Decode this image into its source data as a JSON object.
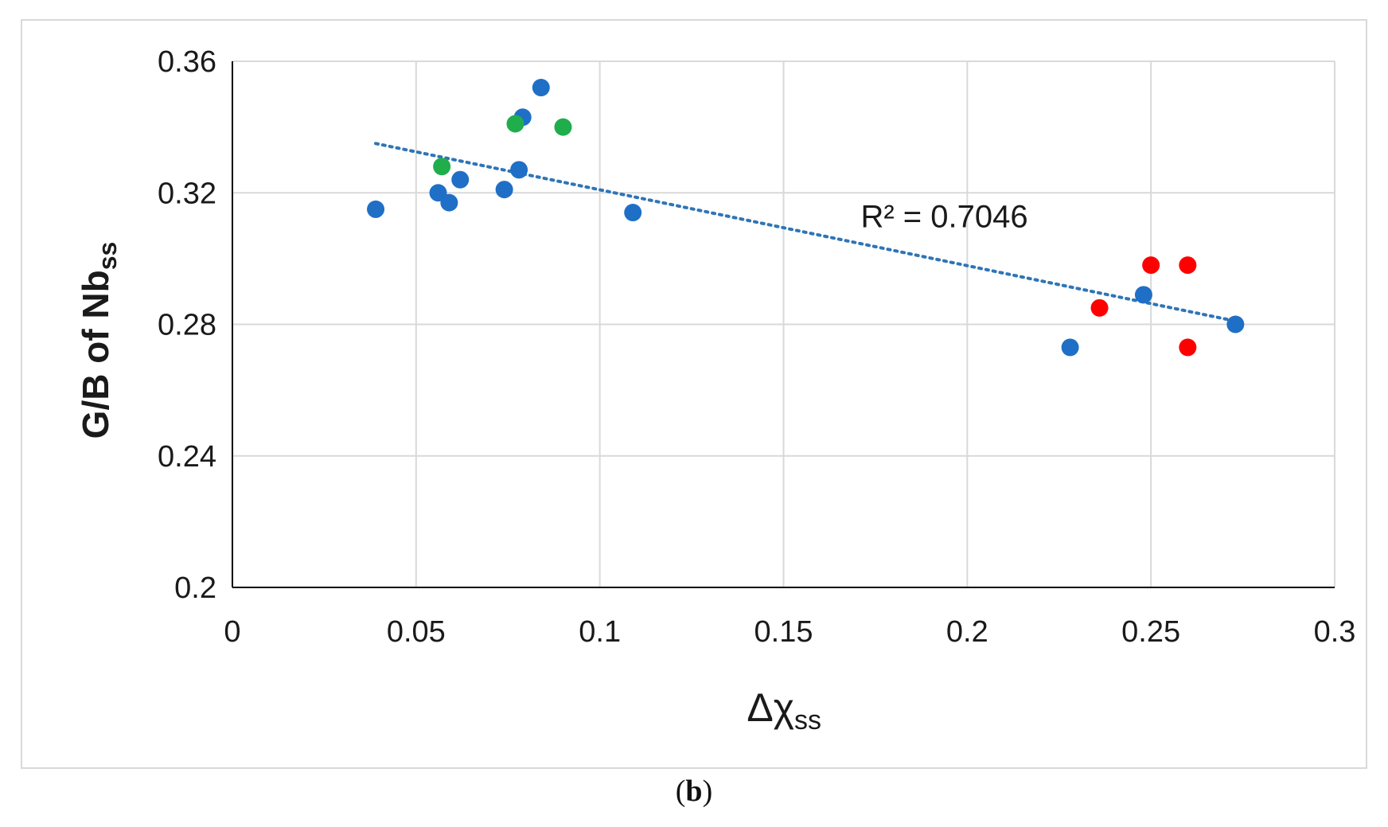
{
  "chart_data": {
    "type": "scatter",
    "title": "",
    "xlabel": "Δχ",
    "xlabel_sub": "ss",
    "ylabel": "G/B of Nb",
    "ylabel_sub": "ss",
    "xlim": [
      0,
      0.3
    ],
    "ylim": [
      0.2,
      0.36
    ],
    "x_ticks": [
      0,
      0.05,
      0.1,
      0.15,
      0.2,
      0.25,
      0.3
    ],
    "x_tick_labels": [
      "0",
      "0.05",
      "0.1",
      "0.15",
      "0.2",
      "0.25",
      "0.3"
    ],
    "y_ticks": [
      0.2,
      0.24,
      0.28,
      0.32,
      0.36
    ],
    "y_tick_labels": [
      "0.2",
      "0.24",
      "0.28",
      "0.32",
      "0.36"
    ],
    "grid": true,
    "series": [
      {
        "name": "blue",
        "color": "#1f6fc6",
        "points": [
          {
            "x": 0.039,
            "y": 0.315
          },
          {
            "x": 0.056,
            "y": 0.32
          },
          {
            "x": 0.059,
            "y": 0.317
          },
          {
            "x": 0.062,
            "y": 0.324
          },
          {
            "x": 0.074,
            "y": 0.321
          },
          {
            "x": 0.078,
            "y": 0.327
          },
          {
            "x": 0.079,
            "y": 0.343
          },
          {
            "x": 0.084,
            "y": 0.352
          },
          {
            "x": 0.109,
            "y": 0.314
          },
          {
            "x": 0.228,
            "y": 0.273
          },
          {
            "x": 0.248,
            "y": 0.289
          },
          {
            "x": 0.273,
            "y": 0.28
          }
        ]
      },
      {
        "name": "green",
        "color": "#1fae4b",
        "points": [
          {
            "x": 0.057,
            "y": 0.328
          },
          {
            "x": 0.077,
            "y": 0.341
          },
          {
            "x": 0.09,
            "y": 0.34
          }
        ]
      },
      {
        "name": "red",
        "color": "#ff0000",
        "points": [
          {
            "x": 0.236,
            "y": 0.285
          },
          {
            "x": 0.25,
            "y": 0.298
          },
          {
            "x": 0.26,
            "y": 0.298
          },
          {
            "x": 0.26,
            "y": 0.273
          }
        ]
      }
    ],
    "trendline": {
      "type": "linear",
      "color": "#2e75b6",
      "style": "dotted",
      "from": {
        "x": 0.039,
        "y": 0.335
      },
      "to": {
        "x": 0.273,
        "y": 0.281
      },
      "annotation": "R² = 0.7046"
    }
  },
  "caption": {
    "open": "(",
    "label": "b",
    "close": ")"
  }
}
